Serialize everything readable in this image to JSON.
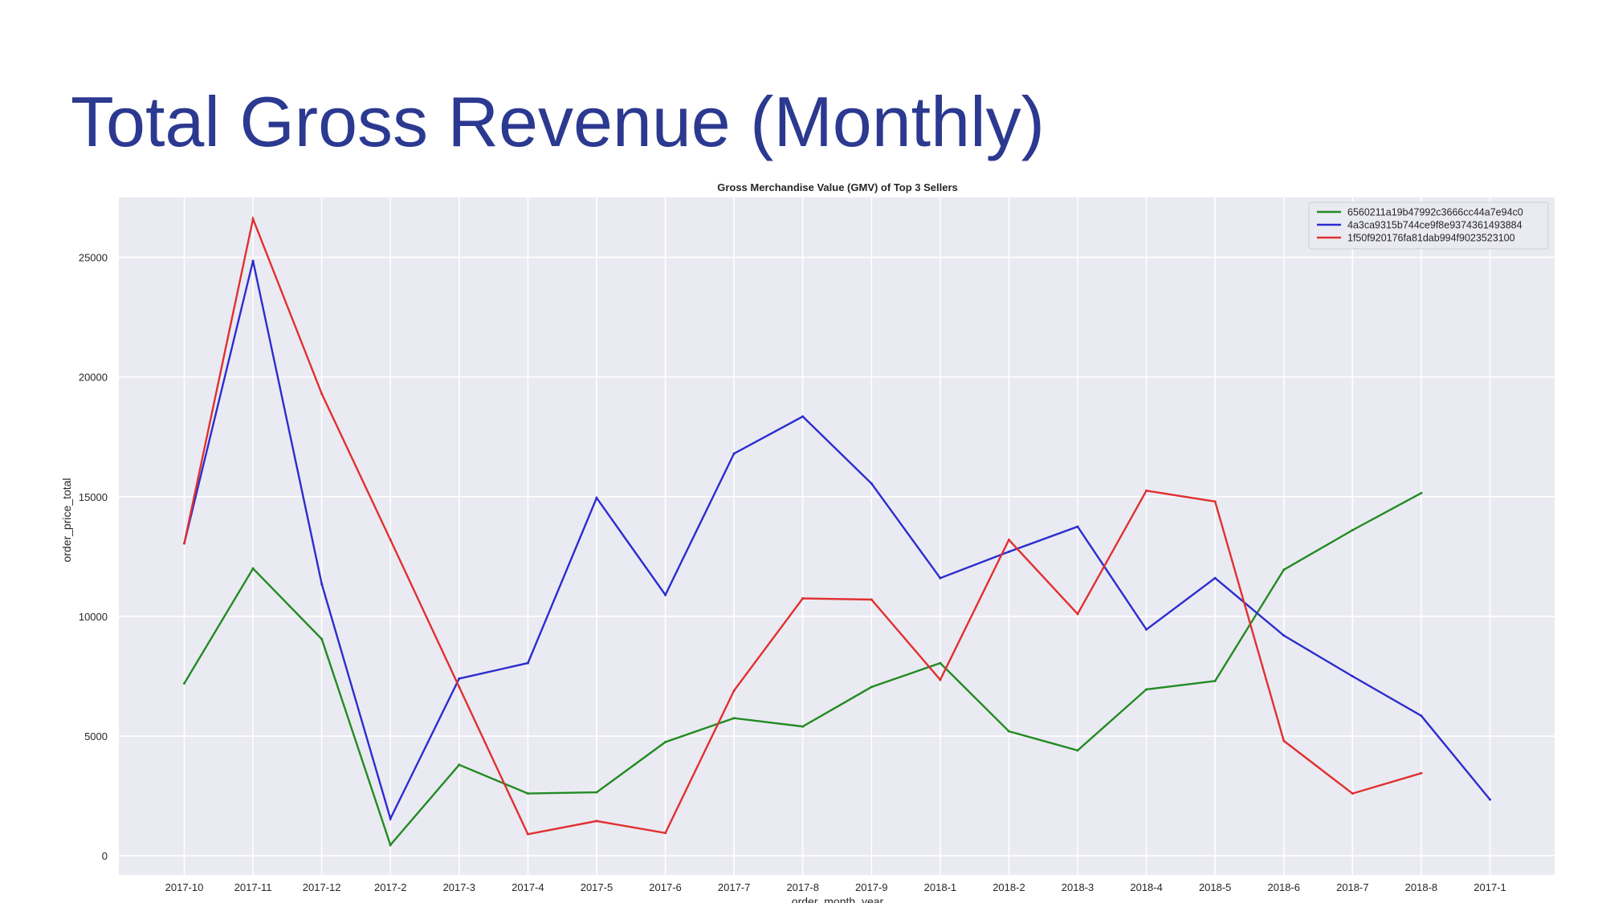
{
  "slide": {
    "title": "Total Gross Revenue (Monthly)"
  },
  "chart_data": {
    "type": "line",
    "title": "Gross Merchandise Value (GMV) of Top 3 Sellers",
    "xlabel": "order_month_year",
    "ylabel": "order_price_total",
    "categories": [
      "2017-10",
      "2017-11",
      "2017-12",
      "2017-2",
      "2017-3",
      "2017-4",
      "2017-5",
      "2017-6",
      "2017-7",
      "2017-8",
      "2017-9",
      "2018-1",
      "2018-2",
      "2018-3",
      "2018-4",
      "2018-5",
      "2018-6",
      "2018-7",
      "2018-8",
      "2017-1"
    ],
    "ylim": [
      -800,
      27500
    ],
    "yticks": [
      0,
      5000,
      10000,
      15000,
      20000,
      25000
    ],
    "grid": true,
    "legend_position": "top-right",
    "background": "#eaeaf2",
    "series": [
      {
        "name": "6560211a19b47992c3666cc44a7e94c0",
        "color": "#228b22",
        "values": [
          7200,
          12000,
          9050,
          450,
          3800,
          2600,
          2650,
          4750,
          5750,
          5400,
          7050,
          8050,
          5200,
          4400,
          6950,
          7300,
          11950,
          13600,
          15150,
          null
        ]
      },
      {
        "name": "4a3ca9315b744ce9f8e9374361493884",
        "color": "#2c2ccf",
        "values": [
          13050,
          24850,
          11350,
          1550,
          7400,
          8050,
          14950,
          10900,
          16800,
          18350,
          15550,
          11600,
          12700,
          13750,
          9450,
          11600,
          9200,
          7500,
          5850,
          2350
        ]
      },
      {
        "name": "1f50f920176fa81dab994f9023523100",
        "color": "#e03030",
        "values": [
          13050,
          26600,
          19300,
          13200,
          7050,
          900,
          1450,
          950,
          6900,
          10750,
          10700,
          7350,
          13200,
          10100,
          15250,
          14800,
          4800,
          2600,
          3450,
          null
        ]
      }
    ]
  }
}
